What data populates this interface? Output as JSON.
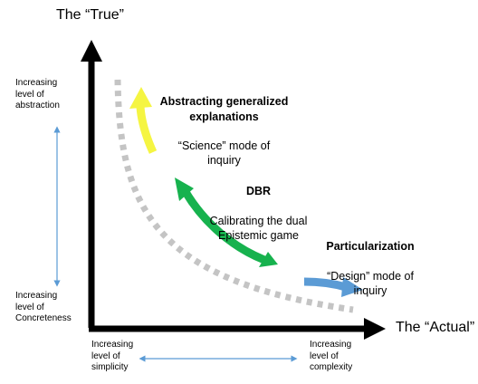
{
  "axes": {
    "y_title": "The “True”",
    "x_title": "The “Actual”"
  },
  "y_scale": {
    "top_label": "Increasing\nlevel of\nabstraction",
    "bottom_label": "Increasing\nlevel of\nConcreteness"
  },
  "x_scale": {
    "left_label": "Increasing\nlevel of\nsimplicity",
    "right_label": "Increasing\nlevel of\ncomplexity"
  },
  "annotations": {
    "science": {
      "heading": "Abstracting generalized\nexplanations",
      "body": "“Science” mode of\ninquiry",
      "color": "#f5f542"
    },
    "dbr": {
      "heading": "DBR",
      "body": "Calibrating the dual\nEpistemic game",
      "color": "#17b24e"
    },
    "design": {
      "heading": "Particularization",
      "body": "“Design” mode of\ninquiry",
      "color": "#5b9bd5"
    }
  },
  "colors": {
    "axis": "#000000",
    "curve": "#c4c4c4",
    "scale_arrow": "#5b9bd5"
  }
}
